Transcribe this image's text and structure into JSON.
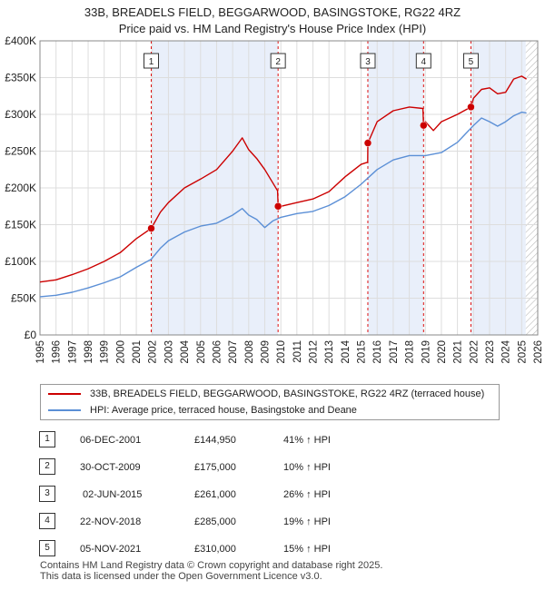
{
  "title": {
    "line1": "33B, BREADELS FIELD, BEGGARWOOD, BASINGSTOKE, RG22 4RZ",
    "line2": "Price paid vs. HM Land Registry's House Price Index (HPI)"
  },
  "legend": {
    "property": "33B, BREADELS FIELD, BEGGARWOOD, BASINGSTOKE, RG22 4RZ (terraced house)",
    "hpi": "HPI: Average price, terraced house, Basingstoke and Deane"
  },
  "colors": {
    "property": "#cc0000",
    "hpi": "#5b8fd6",
    "band": "#e9effa",
    "grid": "#dddddd",
    "marker_line": "#d11"
  },
  "transactions": [
    {
      "num": "1",
      "date": "06-DEC-2001",
      "price": "£144,950",
      "hpi": "41% ↑ HPI"
    },
    {
      "num": "2",
      "date": "30-OCT-2009",
      "price": "£175,000",
      "hpi": "10% ↑ HPI"
    },
    {
      "num": "3",
      "date": "02-JUN-2015",
      "price": "£261,000",
      "hpi": "26% ↑ HPI"
    },
    {
      "num": "4",
      "date": "22-NOV-2018",
      "price": "£285,000",
      "hpi": "19% ↑ HPI"
    },
    {
      "num": "5",
      "date": "05-NOV-2021",
      "price": "£310,000",
      "hpi": "15% ↑ HPI"
    }
  ],
  "footer": {
    "line1": "Contains HM Land Registry data © Crown copyright and database right 2025.",
    "line2": "This data is licensed under the Open Government Licence v3.0."
  },
  "chart_data": {
    "type": "line",
    "title": "Price paid vs. HM Land Registry's House Price Index (HPI)",
    "xlabel": "",
    "ylabel": "",
    "xlim": [
      1995,
      2026
    ],
    "ylim": [
      0,
      400000
    ],
    "y_ticks": [
      {
        "value": 0,
        "label": "£0"
      },
      {
        "value": 50000,
        "label": "£50K"
      },
      {
        "value": 100000,
        "label": "£100K"
      },
      {
        "value": 150000,
        "label": "£150K"
      },
      {
        "value": 200000,
        "label": "£200K"
      },
      {
        "value": 250000,
        "label": "£250K"
      },
      {
        "value": 300000,
        "label": "£300K"
      },
      {
        "value": 350000,
        "label": "£350K"
      },
      {
        "value": 400000,
        "label": "£400K"
      }
    ],
    "x_ticks": [
      "1995",
      "1996",
      "1997",
      "1998",
      "1999",
      "2000",
      "2001",
      "2002",
      "2003",
      "2004",
      "2005",
      "2006",
      "2007",
      "2008",
      "2009",
      "2010",
      "2011",
      "2012",
      "2013",
      "2014",
      "2015",
      "2016",
      "2017",
      "2018",
      "2019",
      "2020",
      "2021",
      "2022",
      "2023",
      "2024",
      "2025",
      "2026"
    ],
    "grid": true,
    "hatched_future_from": 2025.25,
    "sales": [
      {
        "label": "1",
        "x": 2001.93,
        "y": 144950
      },
      {
        "label": "2",
        "x": 2009.83,
        "y": 175000
      },
      {
        "label": "3",
        "x": 2015.42,
        "y": 261000
      },
      {
        "label": "4",
        "x": 2018.89,
        "y": 285000
      },
      {
        "label": "5",
        "x": 2021.84,
        "y": 310000
      }
    ],
    "series": [
      {
        "name": "33B, BREADELS FIELD, BEGGARWOOD, BASINGSTOKE, RG22 4RZ (terraced house)",
        "x": [
          1995,
          1996,
          1997,
          1998,
          1999,
          2000,
          2001,
          2001.93,
          2002.5,
          2003,
          2004,
          2005,
          2006,
          2007,
          2007.6,
          2008,
          2008.5,
          2009,
          2009.8,
          2009.83,
          2010,
          2011,
          2012,
          2013,
          2014,
          2015,
          2015.41,
          2015.42,
          2016,
          2017,
          2018,
          2018.85,
          2018.89,
          2019,
          2019.5,
          2020,
          2021,
          2021.84,
          2022,
          2022.5,
          2023,
          2023.5,
          2024,
          2024.5,
          2025,
          2025.3
        ],
        "values": [
          72000,
          75000,
          82000,
          90000,
          100000,
          112000,
          131000,
          144950,
          167000,
          180000,
          200000,
          212000,
          225000,
          250000,
          268000,
          252000,
          240000,
          225000,
          196000,
          175000,
          175000,
          180000,
          185000,
          195000,
          215000,
          232000,
          235000,
          261000,
          290000,
          305000,
          310000,
          308000,
          285000,
          290000,
          278000,
          290000,
          300000,
          310000,
          322000,
          334000,
          336000,
          328000,
          330000,
          348000,
          352000,
          348000
        ]
      },
      {
        "name": "HPI: Average price, terraced house, Basingstoke and Deane",
        "x": [
          1995,
          1996,
          1997,
          1998,
          1999,
          2000,
          2001,
          2001.93,
          2002.5,
          2003,
          2004,
          2005,
          2006,
          2007,
          2007.6,
          2008,
          2008.5,
          2009,
          2009.5,
          2010,
          2011,
          2012,
          2013,
          2014,
          2015,
          2016,
          2017,
          2018,
          2019,
          2020,
          2021,
          2022,
          2022.5,
          2023,
          2023.5,
          2024,
          2024.5,
          2025,
          2025.3
        ],
        "values": [
          52000,
          54000,
          58000,
          64000,
          71000,
          79000,
          92000,
          103000,
          118000,
          128000,
          140000,
          148000,
          152000,
          163000,
          172000,
          163000,
          157000,
          146000,
          155000,
          160000,
          165000,
          168000,
          176000,
          188000,
          205000,
          225000,
          238000,
          244000,
          244000,
          248000,
          262000,
          285000,
          295000,
          290000,
          284000,
          290000,
          298000,
          303000,
          302000
        ]
      }
    ]
  }
}
